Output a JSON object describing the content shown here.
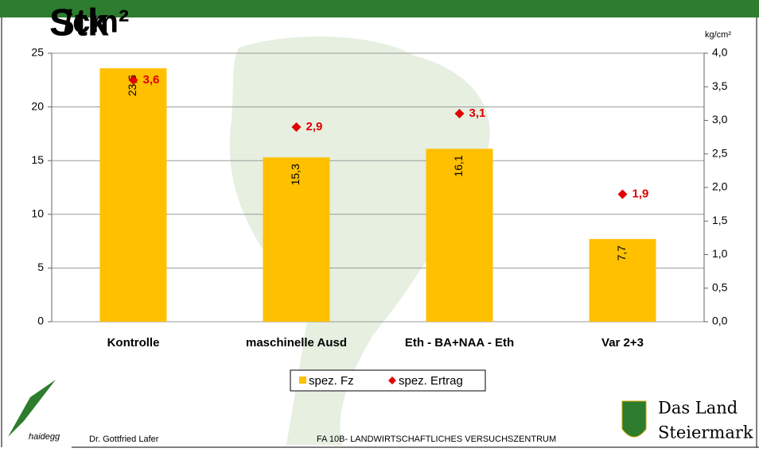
{
  "slide": {
    "heading": "Stk",
    "heading_overlay": "/cm²",
    "logo_left": "haidegg",
    "footer_author": "Dr. Gottfried Lafer",
    "footer_org": "FA 10B- LANDWIRTSCHAFTLICHES VERSUCHSZENTRUM",
    "logo_right_1": "Das Land",
    "logo_right_2": "Steiermark"
  },
  "chart_data": {
    "type": "bar",
    "categories": [
      "Kontrolle",
      "maschinelle Ausd",
      "Eth - BA+NAA - Eth",
      "Var 2+3"
    ],
    "series": [
      {
        "name": "spez. Fz",
        "color": "#ffc000",
        "values": [
          23.6,
          15.3,
          16.1,
          7.7
        ],
        "value_labels": [
          "23,6",
          "15,3",
          "16,1",
          "7,7"
        ]
      },
      {
        "name": "spez. Ertrag",
        "color": "#e00000",
        "axis": "y2",
        "marker": "diamond",
        "values": [
          3.6,
          2.9,
          3.1,
          1.9
        ],
        "value_labels": [
          "3,6",
          "2,9",
          "3,1",
          "1,9"
        ]
      }
    ],
    "y2_label": "kg/cm²",
    "ylim": [
      0,
      25
    ],
    "yticks": [
      0,
      5,
      10,
      15,
      20,
      25
    ],
    "y2lim": [
      0,
      4
    ],
    "y2ticks": [
      {
        "value": 0,
        "label": "0,0"
      },
      {
        "value": 0.5,
        "label": "0,5"
      },
      {
        "value": 1,
        "label": "1,0"
      },
      {
        "value": 1.5,
        "label": "1,5"
      },
      {
        "value": 2,
        "label": "2,0"
      },
      {
        "value": 2.5,
        "label": "2,5"
      },
      {
        "value": 3,
        "label": "3,0"
      },
      {
        "value": 3.5,
        "label": "3,5"
      },
      {
        "value": 4,
        "label": "4,0"
      }
    ],
    "grid": true,
    "legend": "bottom"
  }
}
